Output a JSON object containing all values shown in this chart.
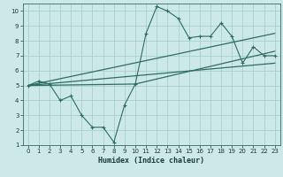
{
  "xlabel": "Humidex (Indice chaleur)",
  "bg_color": "#cce8e8",
  "line_color": "#2e6e60",
  "grid_color": "#aacece",
  "xlim": [
    -0.5,
    23.5
  ],
  "ylim": [
    1,
    10.5
  ],
  "xticks": [
    0,
    1,
    2,
    3,
    4,
    5,
    6,
    7,
    8,
    9,
    10,
    11,
    12,
    13,
    14,
    15,
    16,
    17,
    18,
    19,
    20,
    21,
    22,
    23
  ],
  "yticks": [
    1,
    2,
    3,
    4,
    5,
    6,
    7,
    8,
    9,
    10
  ],
  "zigzag_x": [
    0,
    1,
    2,
    3,
    4,
    5,
    6,
    7,
    8,
    9,
    10,
    11,
    12,
    13,
    14,
    15,
    16,
    17,
    18,
    19,
    20,
    21,
    22,
    23
  ],
  "zigzag_y": [
    5.0,
    5.3,
    5.1,
    4.0,
    4.3,
    3.0,
    2.2,
    2.2,
    1.2,
    3.7,
    5.1,
    8.5,
    10.3,
    10.0,
    9.5,
    8.2,
    8.3,
    8.3,
    9.2,
    8.3,
    6.5,
    7.6,
    7.0,
    7.0
  ],
  "line1_x": [
    0,
    23
  ],
  "line1_y": [
    5.0,
    8.5
  ],
  "line2_x": [
    0,
    23
  ],
  "line2_y": [
    5.0,
    6.5
  ],
  "line3_x": [
    0,
    10,
    23
  ],
  "line3_y": [
    5.0,
    5.1,
    7.3
  ]
}
